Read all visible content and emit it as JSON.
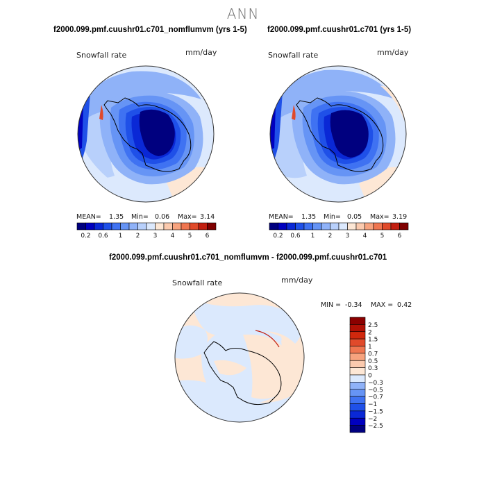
{
  "title": "ANN",
  "panels": [
    {
      "case": "f2000.099.pmf.cuushr01.c701_nomflumvm (yrs 1-5)",
      "variable": "Snowfall rate",
      "units": "mm/day",
      "stats": {
        "mean_label": "MEAN=",
        "mean": "1.35",
        "min_label": "Min=",
        "min": "0.06",
        "max_label": "Max=",
        "max": "3.14"
      }
    },
    {
      "case": "f2000.099.pmf.cuushr01.c701 (yrs 1-5)",
      "variable": "Snowfall rate",
      "units": "mm/day",
      "stats": {
        "mean_label": "MEAN=",
        "mean": "1.35",
        "min_label": "Min=",
        "min": "0.05",
        "max_label": "Max=",
        "max": "3.19"
      }
    }
  ],
  "diff_panel": {
    "case": "f2000.099.pmf.cuushr01.c701_nomflumvm - f2000.099.pmf.cuushr01.c701",
    "variable": "Snowfall rate",
    "units": "mm/day",
    "stats_text": {
      "min_label": "MIN =",
      "min": "-0.34",
      "max_label": "MAX =",
      "max": "0.42"
    }
  },
  "chart_data": [
    {
      "type": "heatmap",
      "projection": "south-polar-stereographic",
      "variable": "Snowfall rate",
      "units": "mm/day",
      "stats": {
        "mean": 1.35,
        "min": 0.06,
        "max": 3.14
      },
      "levels": [
        0.2,
        0.4,
        0.6,
        0.8,
        1,
        1.5,
        2,
        2.5,
        3,
        3.5,
        4,
        4.5,
        5,
        5.5,
        6
      ],
      "tick_labels": [
        "0.2",
        "0.6",
        "1",
        "2",
        "3",
        "4",
        "5",
        "6"
      ],
      "colors": [
        "#00007f",
        "#0000bf",
        "#0a28d6",
        "#1f50e8",
        "#3f72f2",
        "#6694f5",
        "#8fb2f8",
        "#b8d0fb",
        "#dce9fd",
        "#fde7d5",
        "#fbcaae",
        "#f7a37e",
        "#ef7650",
        "#e04a2a",
        "#c21f10",
        "#7f0000"
      ]
    },
    {
      "type": "heatmap",
      "projection": "south-polar-stereographic",
      "variable": "Snowfall rate",
      "units": "mm/day",
      "stats": {
        "mean": 1.35,
        "min": 0.05,
        "max": 3.19
      },
      "levels": [
        0.2,
        0.4,
        0.6,
        0.8,
        1,
        1.5,
        2,
        2.5,
        3,
        3.5,
        4,
        4.5,
        5,
        5.5,
        6
      ],
      "tick_labels": [
        "0.2",
        "0.6",
        "1",
        "2",
        "3",
        "4",
        "5",
        "6"
      ],
      "colors": [
        "#00007f",
        "#0000bf",
        "#0a28d6",
        "#1f50e8",
        "#3f72f2",
        "#6694f5",
        "#8fb2f8",
        "#b8d0fb",
        "#dce9fd",
        "#fde7d5",
        "#fbcaae",
        "#f7a37e",
        "#ef7650",
        "#e04a2a",
        "#c21f10",
        "#7f0000"
      ]
    },
    {
      "type": "heatmap",
      "projection": "south-polar-stereographic",
      "variable": "Snowfall rate",
      "units": "mm/day",
      "stats": {
        "min": -0.34,
        "max": 0.42
      },
      "levels": [
        -2.5,
        -2,
        -1.5,
        -1,
        -0.7,
        -0.5,
        -0.3,
        0,
        0.3,
        0.5,
        0.7,
        1,
        1.5,
        2,
        2.5
      ],
      "tick_labels": [
        "2.5",
        "2",
        "1.5",
        "1",
        "0.7",
        "0.5",
        "0.3",
        "0",
        "−0.3",
        "−0.5",
        "−0.7",
        "−1",
        "−1.5",
        "−2",
        "−2.5"
      ],
      "colors": [
        "#00007f",
        "#0000bf",
        "#0a28d6",
        "#1f50e8",
        "#3f72f2",
        "#6694f5",
        "#8fb2f8",
        "#dbe9fd",
        "#fde7d5",
        "#fbcaae",
        "#f7a37e",
        "#ef7650",
        "#e04a2a",
        "#d1280d",
        "#b01005",
        "#8b0000"
      ]
    }
  ]
}
